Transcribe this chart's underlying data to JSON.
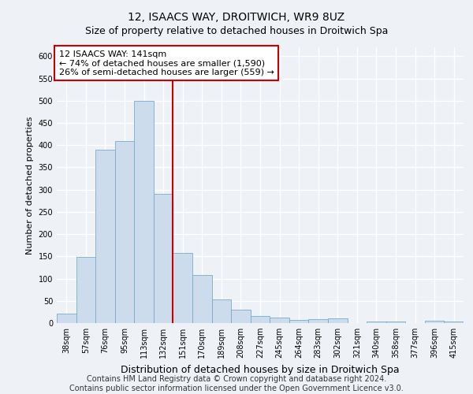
{
  "title": "12, ISAACS WAY, DROITWICH, WR9 8UZ",
  "subtitle": "Size of property relative to detached houses in Droitwich Spa",
  "xlabel": "Distribution of detached houses by size in Droitwich Spa",
  "ylabel": "Number of detached properties",
  "categories": [
    "38sqm",
    "57sqm",
    "76sqm",
    "95sqm",
    "113sqm",
    "132sqm",
    "151sqm",
    "170sqm",
    "189sqm",
    "208sqm",
    "227sqm",
    "245sqm",
    "264sqm",
    "283sqm",
    "302sqm",
    "321sqm",
    "340sqm",
    "358sqm",
    "377sqm",
    "396sqm",
    "415sqm"
  ],
  "values": [
    22,
    148,
    390,
    410,
    500,
    290,
    158,
    108,
    53,
    30,
    16,
    12,
    7,
    9,
    10,
    0,
    4,
    4,
    0,
    5,
    4
  ],
  "bar_color": "#ccdcec",
  "bar_edge_color": "#7aaaca",
  "property_line_x": 5.5,
  "annotation_text_line1": "12 ISAACS WAY: 141sqm",
  "annotation_text_line2": "← 74% of detached houses are smaller (1,590)",
  "annotation_text_line3": "26% of semi-detached houses are larger (559) →",
  "annotation_box_color": "#ffffff",
  "annotation_box_edge_color": "#cc0000",
  "vline_color": "#cc0000",
  "ylim": [
    0,
    620
  ],
  "yticks": [
    0,
    50,
    100,
    150,
    200,
    250,
    300,
    350,
    400,
    450,
    500,
    550,
    600
  ],
  "footer1": "Contains HM Land Registry data © Crown copyright and database right 2024.",
  "footer2": "Contains public sector information licensed under the Open Government Licence v3.0.",
  "bg_color": "#eef2f6",
  "grid_color": "#ffffff",
  "title_fontsize": 10,
  "subtitle_fontsize": 9,
  "annot_fontsize": 8,
  "ylabel_fontsize": 8,
  "xlabel_fontsize": 9,
  "footer_fontsize": 7,
  "tick_fontsize": 7
}
